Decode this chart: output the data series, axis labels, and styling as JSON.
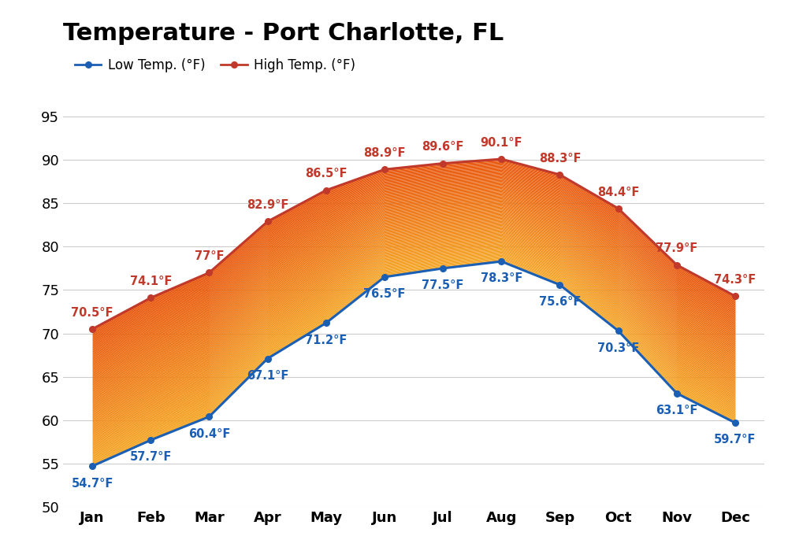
{
  "title": "Temperature - Port Charlotte, FL",
  "months": [
    "Jan",
    "Feb",
    "Mar",
    "Apr",
    "May",
    "Jun",
    "Jul",
    "Aug",
    "Sep",
    "Oct",
    "Nov",
    "Dec"
  ],
  "low_temps": [
    54.7,
    57.7,
    60.4,
    67.1,
    71.2,
    76.5,
    77.5,
    78.3,
    75.6,
    70.3,
    63.1,
    59.7
  ],
  "high_temps": [
    70.5,
    74.1,
    77.0,
    82.9,
    86.5,
    88.9,
    89.6,
    90.1,
    88.3,
    84.4,
    77.9,
    74.3
  ],
  "low_labels": [
    "54.7°F",
    "57.7°F",
    "60.4°F",
    "67.1°F",
    "71.2°F",
    "76.5°F",
    "77.5°F",
    "78.3°F",
    "75.6°F",
    "70.3°F",
    "63.1°F",
    "59.7°F"
  ],
  "high_labels": [
    "70.5°F",
    "74.1°F",
    "77°F",
    "82.9°F",
    "86.5°F",
    "88.9°F",
    "89.6°F",
    "90.1°F",
    "88.3°F",
    "84.4°F",
    "77.9°F",
    "74.3°F"
  ],
  "low_color": "#1a5fb4",
  "high_color": "#c0392b",
  "fill_color_orange": "#e8540a",
  "fill_color_yellow": "#f5a623",
  "ylim": [
    50,
    97
  ],
  "yticks": [
    50,
    55,
    60,
    65,
    70,
    75,
    80,
    85,
    90,
    95
  ],
  "background_color": "#ffffff",
  "grid_color": "#cccccc",
  "legend_low": "Low Temp. (°F)",
  "legend_high": "High Temp. (°F)",
  "title_fontsize": 22,
  "label_fontsize": 10.5,
  "tick_fontsize": 13
}
